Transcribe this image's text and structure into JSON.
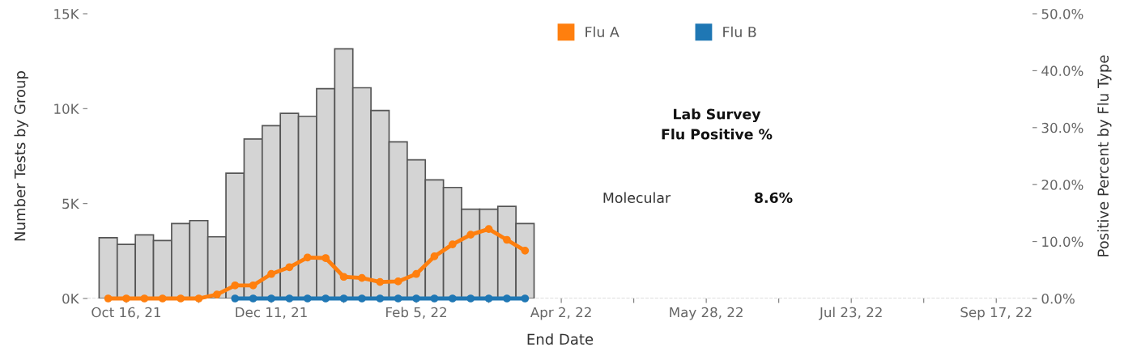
{
  "chart_data": {
    "type": "bar",
    "xlabel": "End Date",
    "ylabel": "Number Tests by Group",
    "y2label": "Positive Percent by Flu Type",
    "x": [
      "2021-10-09",
      "2021-10-16",
      "2021-10-23",
      "2021-10-30",
      "2021-11-06",
      "2021-11-13",
      "2021-11-20",
      "2021-11-27",
      "2021-12-04",
      "2021-12-11",
      "2021-12-18",
      "2021-12-25",
      "2022-01-01",
      "2022-01-08",
      "2022-01-15",
      "2022-01-22",
      "2022-01-29",
      "2022-02-05",
      "2022-02-12",
      "2022-02-19",
      "2022-02-26",
      "2022-03-05",
      "2022-03-12",
      "2022-03-19"
    ],
    "series": [
      {
        "color": "#d4d4d4",
        "values": [
          3200,
          2850,
          3350,
          3050,
          3950,
          4100,
          3250,
          6600,
          8400,
          9100,
          9750,
          9600,
          11050,
          13150,
          11100,
          9900,
          8250,
          7300,
          6250,
          5850,
          4700,
          4700,
          4850,
          3950
        ]
      },
      {
        "type": "line",
        "name": "Flu A",
        "color": "#ff7f0e",
        "axis": "y2",
        "values": [
          0,
          0,
          0,
          0,
          0,
          0,
          0.7,
          2.3,
          2.3,
          4.3,
          5.5,
          7.2,
          7.1,
          3.8,
          3.6,
          2.9,
          3.0,
          4.3,
          7.4,
          9.5,
          11.2,
          12.2,
          10.3,
          8.4
        ]
      },
      {
        "type": "line",
        "name": "Flu B",
        "color": "#1f77b4",
        "axis": "y2",
        "values": [
          null,
          null,
          null,
          null,
          null,
          null,
          null,
          0,
          0,
          0,
          0,
          0,
          0,
          0,
          0,
          0,
          0,
          0,
          0,
          0,
          0,
          0,
          0,
          0
        ]
      }
    ],
    "xlim": [
      "2021-10-01",
      "2022-10-01"
    ],
    "xticks": [
      {
        "value": "2021-10-16",
        "label": "Oct 16, 21"
      },
      {
        "value": "2021-11-13",
        "label": null
      },
      {
        "value": "2021-12-11",
        "label": "Dec 11, 21"
      },
      {
        "value": "2022-01-08",
        "label": null
      },
      {
        "value": "2022-02-05",
        "label": "Feb 5, 22"
      },
      {
        "value": "2022-03-05",
        "label": null
      },
      {
        "value": "2022-04-02",
        "label": "Apr 2, 22"
      },
      {
        "value": "2022-04-30",
        "label": null
      },
      {
        "value": "2022-05-28",
        "label": "May 28, 22"
      },
      {
        "value": "2022-06-25",
        "label": null
      },
      {
        "value": "2022-07-23",
        "label": "Jul 23, 22"
      },
      {
        "value": "2022-08-20",
        "label": null
      },
      {
        "value": "2022-09-17",
        "label": "Sep 17, 22"
      }
    ],
    "ylim": [
      0,
      15000
    ],
    "yticks": [
      {
        "value": 0,
        "label": "0K"
      },
      {
        "value": 5000,
        "label": "5K"
      },
      {
        "value": 10000,
        "label": "10K"
      },
      {
        "value": 15000,
        "label": "15K"
      }
    ],
    "y2lim": [
      0,
      50
    ],
    "y2ticks": [
      {
        "value": 0,
        "label": "0.0%"
      },
      {
        "value": 10,
        "label": "10.0%"
      },
      {
        "value": 20,
        "label": "20.0%"
      },
      {
        "value": 30,
        "label": "30.0%"
      },
      {
        "value": 40,
        "label": "40.0%"
      },
      {
        "value": 50,
        "label": "50.0%"
      }
    ],
    "ref_lines": [
      {
        "axis": "y",
        "value": 0,
        "color": "#bbbbbb",
        "line_style": "dashed"
      }
    ],
    "annotations": [
      "Lab Survey\nFlu Positive %",
      "Molecular",
      "8.6%"
    ],
    "legend": "top",
    "marker": "circle",
    "grid": false
  }
}
